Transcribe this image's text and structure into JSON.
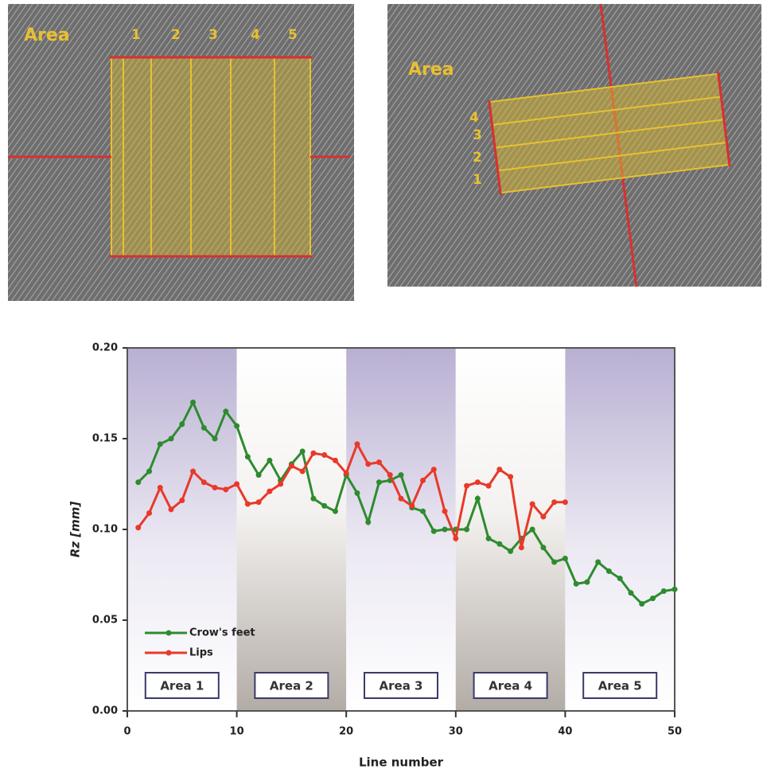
{
  "photos": [
    {
      "label": "Area",
      "numbers": [
        "1",
        "2",
        "3",
        "4",
        "5"
      ]
    },
    {
      "label": "Area",
      "numbers": [
        "1",
        "2",
        "3",
        "4"
      ]
    }
  ],
  "chart_data": {
    "type": "line",
    "x_label": "Line number",
    "y_label": "Rz [mm]",
    "x": [
      1,
      2,
      3,
      4,
      5,
      6,
      7,
      8,
      9,
      10,
      11,
      12,
      13,
      14,
      15,
      16,
      17,
      18,
      19,
      20,
      21,
      22,
      23,
      24,
      25,
      26,
      27,
      28,
      29,
      30,
      31,
      32,
      33,
      34,
      35,
      36,
      37,
      38,
      39,
      40,
      41,
      42,
      43,
      44,
      45,
      46,
      47,
      48,
      49,
      50
    ],
    "series": [
      {
        "name": "Crow's feet",
        "color": "#2e8b2e",
        "values": [
          0.126,
          0.132,
          0.147,
          0.15,
          0.158,
          0.17,
          0.156,
          0.15,
          0.165,
          0.157,
          0.14,
          0.13,
          0.138,
          0.127,
          0.136,
          0.143,
          0.117,
          0.113,
          0.11,
          0.13,
          0.12,
          0.104,
          0.126,
          0.127,
          0.13,
          0.112,
          0.11,
          0.099,
          0.1,
          0.1,
          0.1,
          0.117,
          0.095,
          0.092,
          0.088,
          0.095,
          0.1,
          0.09,
          0.082,
          0.084,
          0.07,
          0.071,
          0.082,
          0.077,
          0.073,
          0.065,
          0.059,
          0.062,
          0.066,
          0.067
        ]
      },
      {
        "name": "Lips",
        "color": "#e8392a",
        "values": [
          0.101,
          0.109,
          0.123,
          0.111,
          0.116,
          0.132,
          0.126,
          0.123,
          0.122,
          0.125,
          0.114,
          0.115,
          0.121,
          0.125,
          0.135,
          0.132,
          0.142,
          0.141,
          0.138,
          0.131,
          0.147,
          0.136,
          0.137,
          0.13,
          0.117,
          0.113,
          0.127,
          0.133,
          0.11,
          0.095,
          0.124,
          0.126,
          0.124,
          0.133,
          0.129,
          0.09,
          0.114,
          0.107,
          0.115,
          0.115,
          null,
          null,
          null,
          null,
          null,
          null,
          null,
          null,
          null,
          null
        ]
      }
    ],
    "bands": [
      {
        "label": "Area 1",
        "from": 0,
        "to": 10
      },
      {
        "label": "Area 2",
        "from": 10,
        "to": 20
      },
      {
        "label": "Area 3",
        "from": 20,
        "to": 30
      },
      {
        "label": "Area 4",
        "from": 30,
        "to": 40
      },
      {
        "label": "Area 5",
        "from": 40,
        "to": 50
      }
    ],
    "xlim": [
      0,
      50
    ],
    "xticks": [
      0,
      10,
      20,
      30,
      40,
      50
    ],
    "ylim": [
      0,
      0.2
    ],
    "yticks": [
      {
        "value": 0,
        "label": "0.00"
      },
      0.05,
      {
        "value": 0.1,
        "label": "0.10"
      },
      0.15,
      {
        "value": 0.2,
        "label": "0.20"
      }
    ],
    "legend": "lower left"
  }
}
